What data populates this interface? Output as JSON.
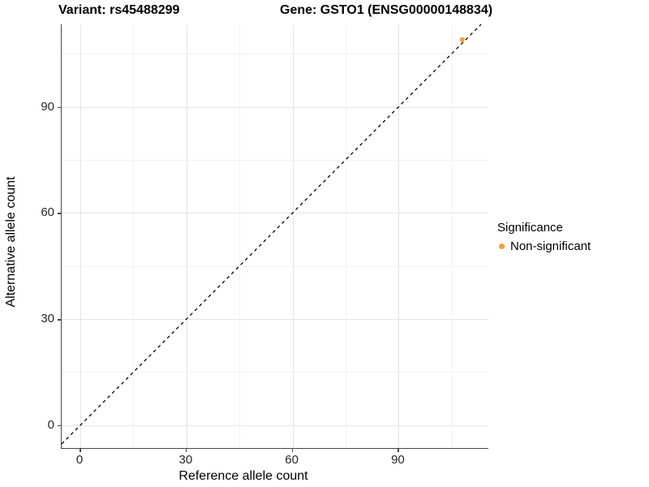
{
  "chart_data": {
    "type": "scatter",
    "title_left": "Variant: rs45488299",
    "title_right": "Gene: GSTO1 (ENSG00000148834)",
    "xlabel": "Reference allele count",
    "ylabel": "Alternative allele count",
    "xlim": [
      -5.3,
      115.6
    ],
    "ylim": [
      -6.7,
      113.3
    ],
    "x_ticks": [
      0,
      30,
      60,
      90
    ],
    "x_minor_ticks": [
      15,
      45,
      75,
      105
    ],
    "y_ticks": [
      0,
      30,
      60,
      90
    ],
    "y_minor_ticks": [
      15,
      45,
      75,
      105
    ],
    "grid": true,
    "legend_position": "right",
    "reference_line": {
      "kind": "identity",
      "slope": 1,
      "intercept": 0,
      "style": "dashed",
      "color": "#000000"
    },
    "series": [
      {
        "name": "Non-significant",
        "color": "#FF9E2C",
        "point_radius": 3,
        "points": [
          {
            "x": 108,
            "y": 109
          }
        ]
      }
    ],
    "legend": {
      "title": "Significance"
    }
  }
}
